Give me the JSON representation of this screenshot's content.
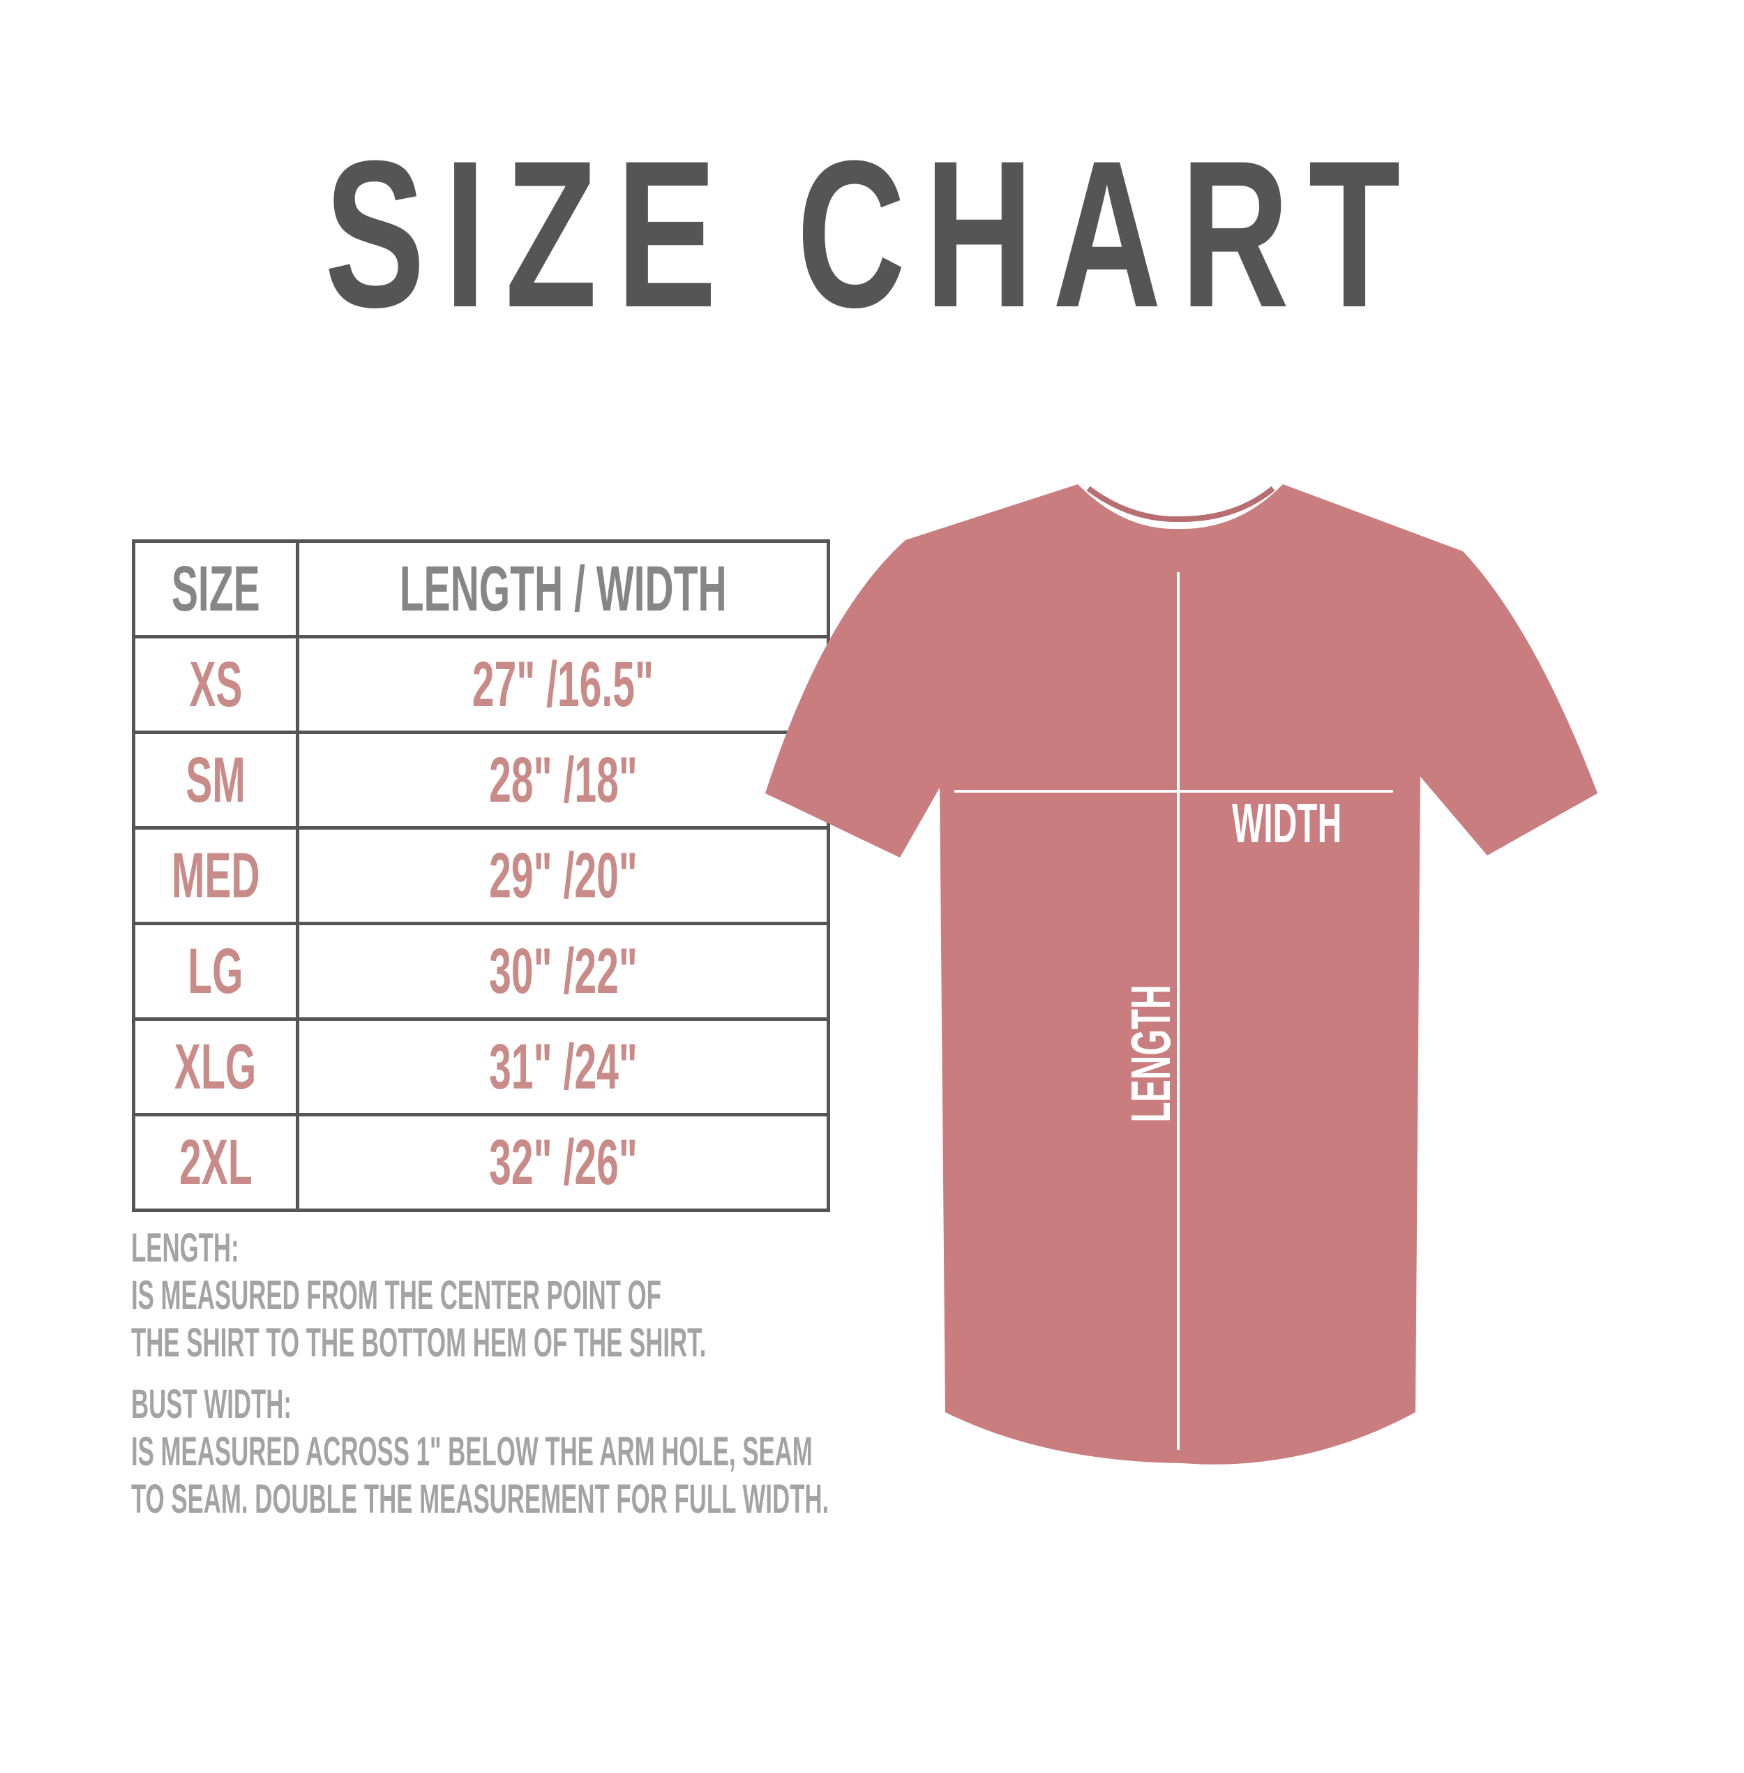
{
  "title": "SIZE CHART",
  "table": {
    "headers": [
      "SIZE",
      "LENGTH / WIDTH"
    ],
    "rows": [
      {
        "size": "XS",
        "measure": "27\" /16.5\""
      },
      {
        "size": "SM",
        "measure": "28\" /18\""
      },
      {
        "size": "MED",
        "measure": "29\" /20\""
      },
      {
        "size": "LG",
        "measure": "30\" /22\""
      },
      {
        "size": "XLG",
        "measure": "31\" /24\""
      },
      {
        "size": "2XL",
        "measure": "32\" /26\""
      }
    ]
  },
  "notes": [
    "LENGTH:",
    "IS MEASURED FROM THE CENTER POINT OF",
    "THE SHIRT TO THE BOTTOM HEM OF THE SHIRT.",
    "BUST WIDTH:",
    "IS MEASURED ACROSS  1\" BELOW THE ARM HOLE, SEAM",
    "TO SEAM. DOUBLE THE MEASUREMENT FOR FULL WIDTH."
  ],
  "diagram": {
    "width_label": "WIDTH",
    "length_label": "LENGTH"
  },
  "colors": {
    "title": "#555555",
    "header_text": "#868686",
    "value_text": "#c98b88",
    "shirt": "#c97d7f",
    "notes": "#a3a3a3"
  }
}
